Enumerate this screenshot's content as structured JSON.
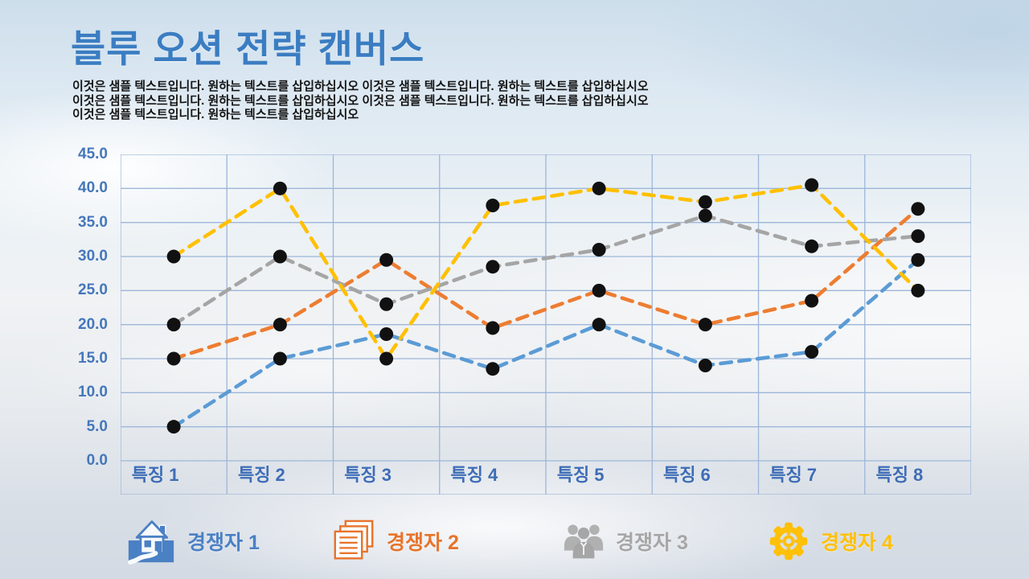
{
  "slide": {
    "title": "블루 오션 전략 캔버스",
    "title_color": "#3b7dc2",
    "body_lines": [
      "이것은 샘플 텍스트입니다. 원하는 텍스트를 삽입하십시오 이것은 샘플 텍스트입니다. 원하는 텍스트를 삽입하십시오",
      "이것은 샘플 텍스트입니다. 원하는 텍스트를 삽입하십시오 이것은 샘플 텍스트입니다. 원하는 텍스트를 삽입하십시오",
      "이것은 샘플 텍스트입니다. 원하는 텍스트를 삽입하십시오"
    ]
  },
  "chart_data": {
    "type": "line",
    "title": "블루 오션 전략 캔버스",
    "categories": [
      "특징 1",
      "특징 2",
      "특징 3",
      "특징 4",
      "특징 5",
      "특징 6",
      "특징 7",
      "특징 8"
    ],
    "y_ticks": [
      "45.0",
      "40.0",
      "35.0",
      "30.0",
      "25.0",
      "20.0",
      "15.0",
      "10.0",
      "5.0",
      "0.0"
    ],
    "ylim": [
      0,
      45
    ],
    "xlabel": "",
    "ylabel": "",
    "grid": true,
    "grid_color": "#9db6d9",
    "axis_label_color": "#4577bb",
    "marker_color": "#111111",
    "line_style": "dashed",
    "legend_position": "bottom",
    "series": [
      {
        "name": "경쟁자 1",
        "color": "#5b9bd5",
        "values": [
          5,
          15,
          18.6,
          13.5,
          20,
          14,
          16,
          29.5
        ]
      },
      {
        "name": "경쟁자 2",
        "color": "#ed7d31",
        "values": [
          15,
          20,
          29.5,
          19.5,
          25,
          20,
          23.5,
          37
        ]
      },
      {
        "name": "경쟁자 3",
        "color": "#a5a5a5",
        "values": [
          20,
          30,
          23,
          28.5,
          31,
          36,
          31.5,
          33
        ]
      },
      {
        "name": "경쟁자 4",
        "color": "#ffc000",
        "values": [
          30,
          40,
          15,
          37.5,
          40,
          38,
          40.5,
          25
        ]
      }
    ]
  },
  "legend": {
    "items": [
      {
        "label": "경쟁자 1",
        "color": "#4a80c4",
        "icon": "house-icon"
      },
      {
        "label": "경쟁자 2",
        "color": "#e8732a",
        "icon": "documents-icon"
      },
      {
        "label": "경쟁자 3",
        "color": "#a6a6a6",
        "icon": "people-icon"
      },
      {
        "label": "경쟁자 4",
        "color": "#ffc008",
        "icon": "gear-icon"
      }
    ]
  }
}
